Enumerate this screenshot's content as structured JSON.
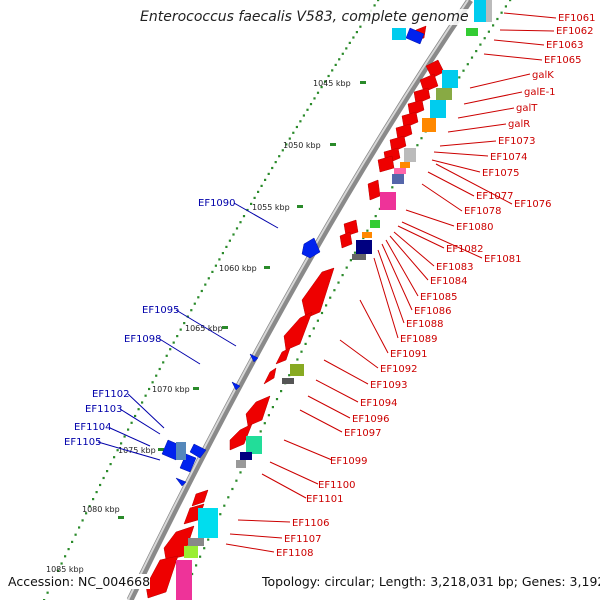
{
  "title": "Enterococcus faecalis V583, complete genome",
  "footer": {
    "accession": "Accession: NC_004668",
    "summary": "Topology: circular; Length: 3,218,031 bp; Genes: 3,192"
  },
  "colors": {
    "forward_label": "#0000aa",
    "reverse_label": "#cc0000",
    "backbone": "#8a8a8a",
    "tick": "#2a8a2a",
    "red_gene": "#ee0000",
    "blue_gene": "#0022ee"
  },
  "scale": {
    "unit": "kbp",
    "ticks": [
      "1045 kbp",
      "1050 kbp",
      "1055 kbp",
      "1060 kbp",
      "1065 kbp",
      "1070 kbp",
      "1075 kbp",
      "1080 kbp",
      "1085 kbp"
    ]
  },
  "forward_labels": [
    "EF1090",
    "EF1095",
    "EF1098",
    "EF1102",
    "EF1103",
    "EF1104",
    "EF1105"
  ],
  "reverse_labels": [
    "EF1061",
    "EF1062",
    "EF1063",
    "EF1065",
    "galK",
    "galE-1",
    "galT",
    "galR",
    "EF1073",
    "EF1074",
    "EF1075",
    "EF1077",
    "EF1076",
    "EF1078",
    "EF1080",
    "EF1082",
    "EF1081",
    "EF1083",
    "EF1084",
    "EF1085",
    "EF1086",
    "EF1088",
    "EF1089",
    "EF1091",
    "EF1092",
    "EF1093",
    "EF1094",
    "EF1096",
    "EF1097",
    "EF1099",
    "EF1100",
    "EF1101",
    "EF1106",
    "EF1107",
    "EF1108"
  ]
}
